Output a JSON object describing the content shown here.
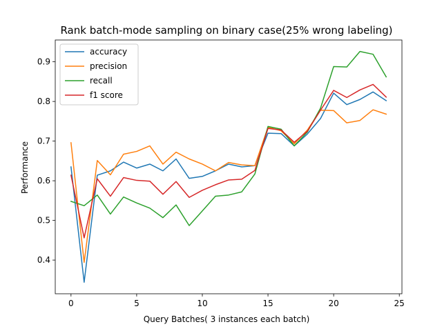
{
  "chart_data": {
    "type": "line",
    "title": "Rank batch-mode sampling on binary case(25% wrong labeling)",
    "xlabel": "Query Batches( 3 instances each batch)",
    "ylabel": "Performance",
    "xlim": [
      -1.2,
      25.2
    ],
    "ylim": [
      0.315,
      0.955
    ],
    "xticks": [
      0,
      5,
      10,
      15,
      20,
      25
    ],
    "yticks": [
      0.4,
      0.5,
      0.6,
      0.7,
      0.8,
      0.9
    ],
    "grid": false,
    "legend_position": "upper-left",
    "x": [
      0,
      1,
      2,
      3,
      4,
      5,
      6,
      7,
      8,
      9,
      10,
      11,
      12,
      13,
      14,
      15,
      16,
      17,
      18,
      19,
      20,
      21,
      22,
      23,
      24
    ],
    "series": [
      {
        "name": "accuracy",
        "color": "#1f77b4",
        "values": [
          0.635,
          0.344,
          0.614,
          0.625,
          0.647,
          0.632,
          0.642,
          0.625,
          0.655,
          0.606,
          0.611,
          0.625,
          0.642,
          0.635,
          0.638,
          0.72,
          0.719,
          0.688,
          0.718,
          0.757,
          0.821,
          0.792,
          0.805,
          0.824,
          0.802
        ]
      },
      {
        "name": "precision",
        "color": "#ff7f0e",
        "values": [
          0.696,
          0.394,
          0.651,
          0.615,
          0.667,
          0.674,
          0.688,
          0.642,
          0.672,
          0.655,
          0.642,
          0.625,
          0.646,
          0.64,
          0.638,
          0.735,
          0.726,
          0.693,
          0.728,
          0.778,
          0.777,
          0.746,
          0.752,
          0.779,
          0.768
        ]
      },
      {
        "name": "recall",
        "color": "#2ca02c",
        "values": [
          0.548,
          0.537,
          0.564,
          0.516,
          0.559,
          0.544,
          0.531,
          0.507,
          0.539,
          0.487,
          0.524,
          0.561,
          0.564,
          0.572,
          0.617,
          0.737,
          0.73,
          0.688,
          0.723,
          0.783,
          0.888,
          0.887,
          0.926,
          0.919,
          0.862
        ]
      },
      {
        "name": "f1 score",
        "color": "#d62728",
        "values": [
          0.614,
          0.456,
          0.605,
          0.561,
          0.608,
          0.601,
          0.599,
          0.566,
          0.598,
          0.558,
          0.576,
          0.59,
          0.602,
          0.604,
          0.626,
          0.732,
          0.728,
          0.697,
          0.725,
          0.778,
          0.828,
          0.81,
          0.829,
          0.843,
          0.811
        ]
      }
    ]
  }
}
